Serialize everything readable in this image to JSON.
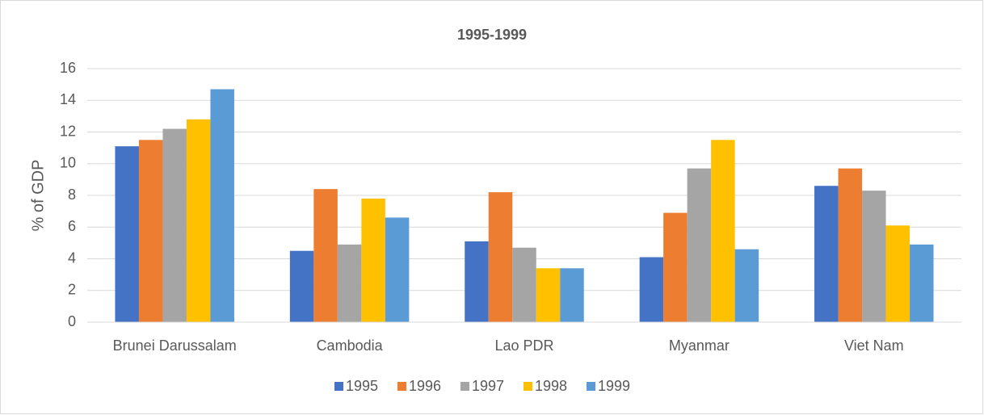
{
  "chart_data": {
    "type": "bar",
    "title": "1995-1999",
    "ylabel": "% of GDP",
    "categories": [
      "Brunei Darussalam",
      "Cambodia",
      "Lao PDR",
      "Myanmar",
      "Viet Nam"
    ],
    "series": [
      {
        "name": "1995",
        "color": "#4472c4",
        "values": [
          11.1,
          4.5,
          5.1,
          4.1,
          8.6
        ]
      },
      {
        "name": "1996",
        "color": "#ed7d31",
        "values": [
          11.5,
          8.4,
          8.2,
          6.9,
          9.7
        ]
      },
      {
        "name": "1997",
        "color": "#a5a5a5",
        "values": [
          12.2,
          4.9,
          4.7,
          9.7,
          8.3
        ]
      },
      {
        "name": "1998",
        "color": "#ffc000",
        "values": [
          12.8,
          7.8,
          3.4,
          11.5,
          6.1
        ]
      },
      {
        "name": "1999",
        "color": "#5b9bd5",
        "values": [
          14.7,
          6.6,
          3.4,
          4.6,
          4.9
        ]
      }
    ],
    "ylim": [
      0,
      16
    ],
    "yticks": [
      0,
      2,
      4,
      6,
      8,
      10,
      12,
      14,
      16
    ],
    "grid": true,
    "legend": "bottom"
  }
}
